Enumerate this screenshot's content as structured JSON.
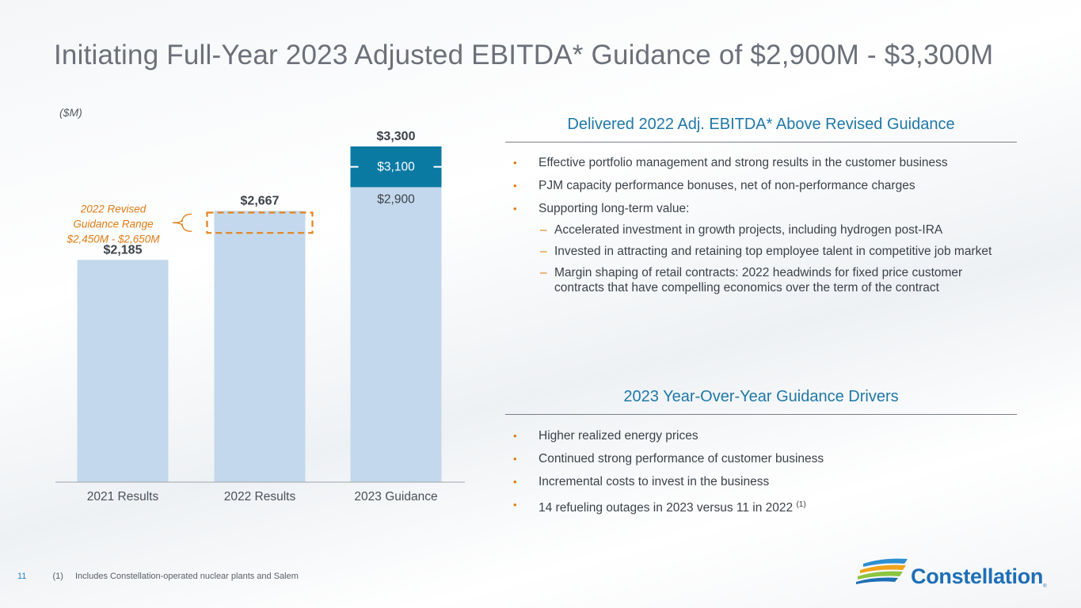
{
  "page": {
    "title": "Initiating Full-Year 2023 Adjusted EBITDA* Guidance of $2,900M - $3,300M",
    "page_number": "11"
  },
  "chart_data": {
    "type": "bar",
    "unit_label": "($M)",
    "categories": [
      "2021 Results",
      "2022 Results",
      "2023 Guidance"
    ],
    "values": [
      2185,
      2667,
      3300
    ],
    "value_labels": [
      "$2,185",
      "$2,667",
      "$3,300"
    ],
    "ylim": [
      0,
      3300
    ],
    "guidance_range": {
      "category": "2023 Guidance",
      "low": 2900,
      "mid": 3100,
      "high": 3300,
      "low_label": "$2,900",
      "mid_label": "$3,100"
    },
    "revised_guidance": {
      "category": "2022 Results",
      "low": 2450,
      "high": 2650,
      "label_lines": [
        "2022 Revised",
        "Guidance Range",
        "$2,450M - $2,650M"
      ]
    },
    "colors": {
      "bar": "#c3d8ec",
      "range_band": "#0a7aa3",
      "range_box": "#e5831e",
      "axis": "#a0a5ab"
    }
  },
  "delivered": {
    "heading": "Delivered 2022 Adj. EBITDA* Above Revised Guidance",
    "bullets": [
      "Effective portfolio management and strong results in the customer business",
      "PJM capacity performance bonuses, net of non-performance charges",
      "Supporting long-term value:"
    ],
    "sub_bullets": [
      "Accelerated investment in growth projects, including hydrogen post-IRA",
      "Invested in attracting and retaining top employee talent in competitive job market",
      "Margin shaping of retail contracts: 2022 headwinds for fixed price customer contracts that have compelling economics over the term of the contract"
    ],
    "bullet_mark": "•",
    "sub_mark": "–"
  },
  "drivers": {
    "heading": "2023 Year-Over-Year Guidance Drivers",
    "bullets": [
      "Higher realized energy prices",
      "Continued strong performance of customer business",
      "Incremental costs to invest in the business",
      "14 refueling outages in 2023 versus 11 in 2022"
    ],
    "last_footnote_ref": "(1)"
  },
  "footer": {
    "footnote_num": "(1)",
    "footnote_text": "Includes Constellation-operated nuclear plants and Salem"
  },
  "logo": {
    "name": "Constellation",
    "tm": "®"
  }
}
